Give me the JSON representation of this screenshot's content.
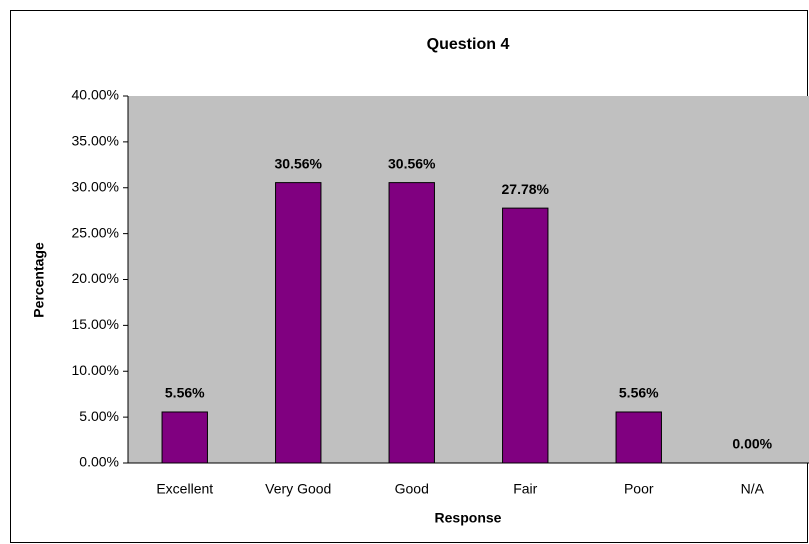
{
  "chart_data": {
    "type": "bar",
    "title": "Question 4",
    "x_label": "Response",
    "y_label": "Percentage",
    "categories": [
      "Excellent",
      "Very Good",
      "Good",
      "Fair",
      "Poor",
      "N/A"
    ],
    "values": [
      5.56,
      30.56,
      30.56,
      27.78,
      5.56,
      0
    ],
    "value_labels": [
      "5.56%",
      "30.56%",
      "30.56%",
      "27.78%",
      "5.56%",
      "0.00%"
    ],
    "color": "#800080",
    "background": "#c0c0c0",
    "ylim": [
      0,
      40
    ],
    "yticks": [
      {
        "value": 0,
        "label": "0.00%"
      },
      {
        "value": 5,
        "label": "5.00%"
      },
      {
        "value": 10,
        "label": "10.00%"
      },
      {
        "value": 15,
        "label": "15.00%"
      },
      {
        "value": 20,
        "label": "20.00%"
      },
      {
        "value": 25,
        "label": "25.00%"
      },
      {
        "value": 30,
        "label": "30.00%"
      },
      {
        "value": 35,
        "label": "35.00%"
      },
      {
        "value": 40,
        "label": "40.00%"
      }
    ],
    "grid": false
  }
}
